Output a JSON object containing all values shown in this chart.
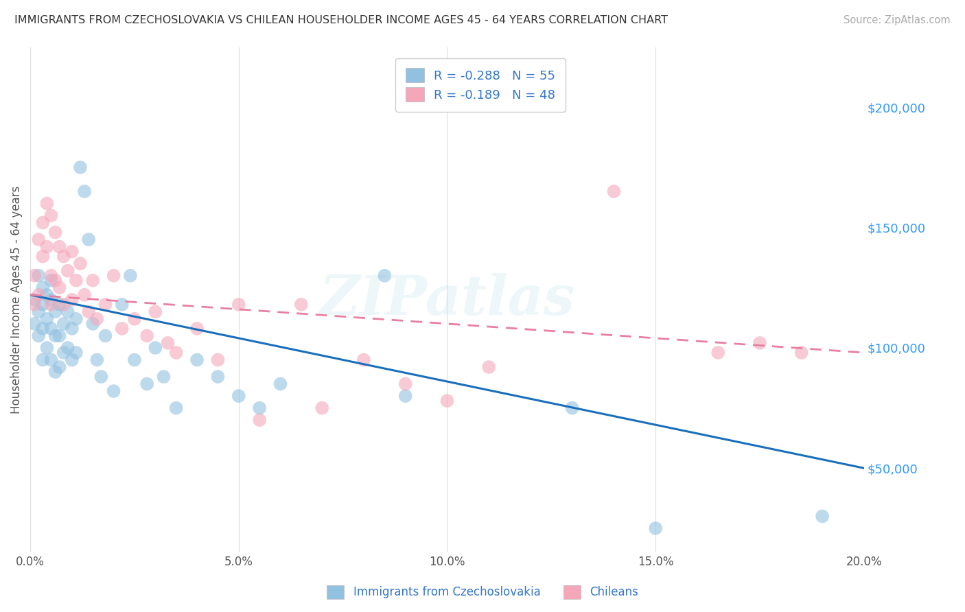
{
  "title": "IMMIGRANTS FROM CZECHOSLOVAKIA VS CHILEAN HOUSEHOLDER INCOME AGES 45 - 64 YEARS CORRELATION CHART",
  "source": "Source: ZipAtlas.com",
  "ylabel": "Householder Income Ages 45 - 64 years",
  "xlim": [
    0.0,
    0.2
  ],
  "ylim": [
    15000,
    225000
  ],
  "xtick_labels": [
    "0.0%",
    "5.0%",
    "10.0%",
    "15.0%",
    "20.0%"
  ],
  "xtick_vals": [
    0.0,
    0.05,
    0.1,
    0.15,
    0.2
  ],
  "ytick_labels": [
    "$50,000",
    "$100,000",
    "$150,000",
    "$200,000"
  ],
  "ytick_vals": [
    50000,
    100000,
    150000,
    200000
  ],
  "watermark": "ZIPatlas",
  "blue_color": "#92c0e0",
  "pink_color": "#f4a7b9",
  "blue_line_color": "#1a6fbd",
  "pink_line_color": "#e87fa0",
  "background_color": "#ffffff",
  "grid_color": "#dddddd",
  "blue_label_r": "R = -0.288",
  "blue_label_n": "N = 55",
  "pink_label_r": "R = -0.189",
  "pink_label_n": "N = 48",
  "legend_label_blue": "Immigrants from Czechoslovakia",
  "legend_label_pink": "Chileans",
  "blue_line_x0": 0.0,
  "blue_line_y0": 122000,
  "blue_line_x1": 0.2,
  "blue_line_y1": 50000,
  "pink_line_x0": 0.0,
  "pink_line_y0": 122000,
  "pink_line_x1": 0.2,
  "pink_line_y1": 98000,
  "blue_scatter_x": [
    0.001,
    0.001,
    0.002,
    0.002,
    0.002,
    0.003,
    0.003,
    0.003,
    0.003,
    0.004,
    0.004,
    0.004,
    0.005,
    0.005,
    0.005,
    0.005,
    0.006,
    0.006,
    0.006,
    0.007,
    0.007,
    0.007,
    0.008,
    0.008,
    0.009,
    0.009,
    0.01,
    0.01,
    0.011,
    0.011,
    0.012,
    0.013,
    0.014,
    0.015,
    0.016,
    0.017,
    0.018,
    0.02,
    0.022,
    0.024,
    0.025,
    0.028,
    0.03,
    0.032,
    0.035,
    0.04,
    0.045,
    0.05,
    0.055,
    0.06,
    0.085,
    0.09,
    0.13,
    0.15,
    0.19
  ],
  "blue_scatter_y": [
    120000,
    110000,
    130000,
    115000,
    105000,
    125000,
    118000,
    108000,
    95000,
    122000,
    112000,
    100000,
    128000,
    120000,
    108000,
    95000,
    115000,
    105000,
    90000,
    118000,
    105000,
    92000,
    110000,
    98000,
    115000,
    100000,
    108000,
    95000,
    112000,
    98000,
    175000,
    165000,
    145000,
    110000,
    95000,
    88000,
    105000,
    82000,
    118000,
    130000,
    95000,
    85000,
    100000,
    88000,
    75000,
    95000,
    88000,
    80000,
    75000,
    85000,
    130000,
    80000,
    75000,
    25000,
    30000
  ],
  "pink_scatter_x": [
    0.001,
    0.001,
    0.002,
    0.002,
    0.003,
    0.003,
    0.004,
    0.004,
    0.005,
    0.005,
    0.005,
    0.006,
    0.006,
    0.007,
    0.007,
    0.008,
    0.008,
    0.009,
    0.01,
    0.01,
    0.011,
    0.012,
    0.013,
    0.014,
    0.015,
    0.016,
    0.018,
    0.02,
    0.022,
    0.025,
    0.028,
    0.03,
    0.033,
    0.035,
    0.04,
    0.045,
    0.05,
    0.055,
    0.065,
    0.07,
    0.08,
    0.09,
    0.1,
    0.11,
    0.14,
    0.165,
    0.175,
    0.185
  ],
  "pink_scatter_y": [
    130000,
    118000,
    145000,
    122000,
    152000,
    138000,
    160000,
    142000,
    155000,
    130000,
    118000,
    148000,
    128000,
    142000,
    125000,
    138000,
    118000,
    132000,
    140000,
    120000,
    128000,
    135000,
    122000,
    115000,
    128000,
    112000,
    118000,
    130000,
    108000,
    112000,
    105000,
    115000,
    102000,
    98000,
    108000,
    95000,
    118000,
    70000,
    118000,
    75000,
    95000,
    85000,
    78000,
    92000,
    165000,
    98000,
    102000,
    98000
  ]
}
